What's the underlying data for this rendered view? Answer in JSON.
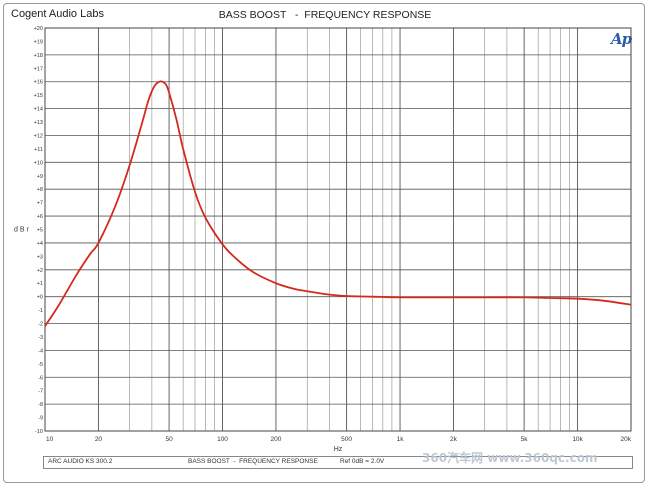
{
  "header": {
    "brand": "Cogent Audio Labs",
    "logo_text": "Ap"
  },
  "footer": {
    "left": "ARC AUDIO KS 300.2",
    "middle": "BASS BOOST  -  FREQUENCY RESPONSE",
    "right": "Ref 0dB = 2.0V"
  },
  "watermark": "360汽车网 www.360qc.com",
  "chart_data": {
    "type": "line",
    "title": "BASS BOOST   -  FREQUENCY RESPONSE",
    "xlabel": "Hz",
    "ylabel": "d B r",
    "xscale": "log",
    "xlim": [
      10,
      20000
    ],
    "ylim": [
      -10,
      20
    ],
    "grid": true,
    "x_ticks": [
      10,
      20,
      50,
      100,
      200,
      500,
      1000,
      2000,
      5000,
      10000,
      20000
    ],
    "x_tick_labels": [
      "10",
      "20",
      "50",
      "100",
      "200",
      "500",
      "1k",
      "2k",
      "5k",
      "10k",
      "20k"
    ],
    "y_ticks": [
      -10,
      -9,
      -8,
      -7,
      -6,
      -5,
      -4,
      -3,
      -2,
      -1,
      0,
      1,
      2,
      3,
      4,
      5,
      6,
      7,
      8,
      9,
      10,
      11,
      12,
      13,
      14,
      15,
      16,
      17,
      18,
      19,
      20
    ],
    "y_tick_labels": [
      "-10",
      "-9",
      "-8",
      "-7",
      "-6",
      "-5",
      "-4",
      "-3",
      "-2",
      "-1",
      "+0",
      "+1",
      "+2",
      "+3",
      "+4",
      "+5",
      "+6",
      "+7",
      "+8",
      "+9",
      "+10",
      "+11",
      "+12",
      "+13",
      "+14",
      "+15",
      "+16",
      "+17",
      "+18",
      "+19",
      "+20"
    ],
    "series": [
      {
        "color": "#d42a1e",
        "x": [
          10,
          12,
          15,
          18,
          20,
          25,
          30,
          35,
          38,
          40,
          42,
          44,
          46,
          48,
          50,
          55,
          60,
          70,
          80,
          100,
          120,
          150,
          200,
          250,
          300,
          400,
          500,
          700,
          1000,
          2000,
          3000,
          5000,
          7000,
          10000,
          14000,
          20000
        ],
        "y": [
          -2.2,
          -0.6,
          1.6,
          3.2,
          4.0,
          6.8,
          9.8,
          12.8,
          14.5,
          15.3,
          15.8,
          16.0,
          16.0,
          15.8,
          15.2,
          13.2,
          11.0,
          7.8,
          5.9,
          3.9,
          2.8,
          1.8,
          1.0,
          0.6,
          0.4,
          0.15,
          0.05,
          0.0,
          -0.05,
          -0.05,
          -0.05,
          -0.05,
          -0.1,
          -0.15,
          -0.3,
          -0.6
        ]
      }
    ]
  }
}
